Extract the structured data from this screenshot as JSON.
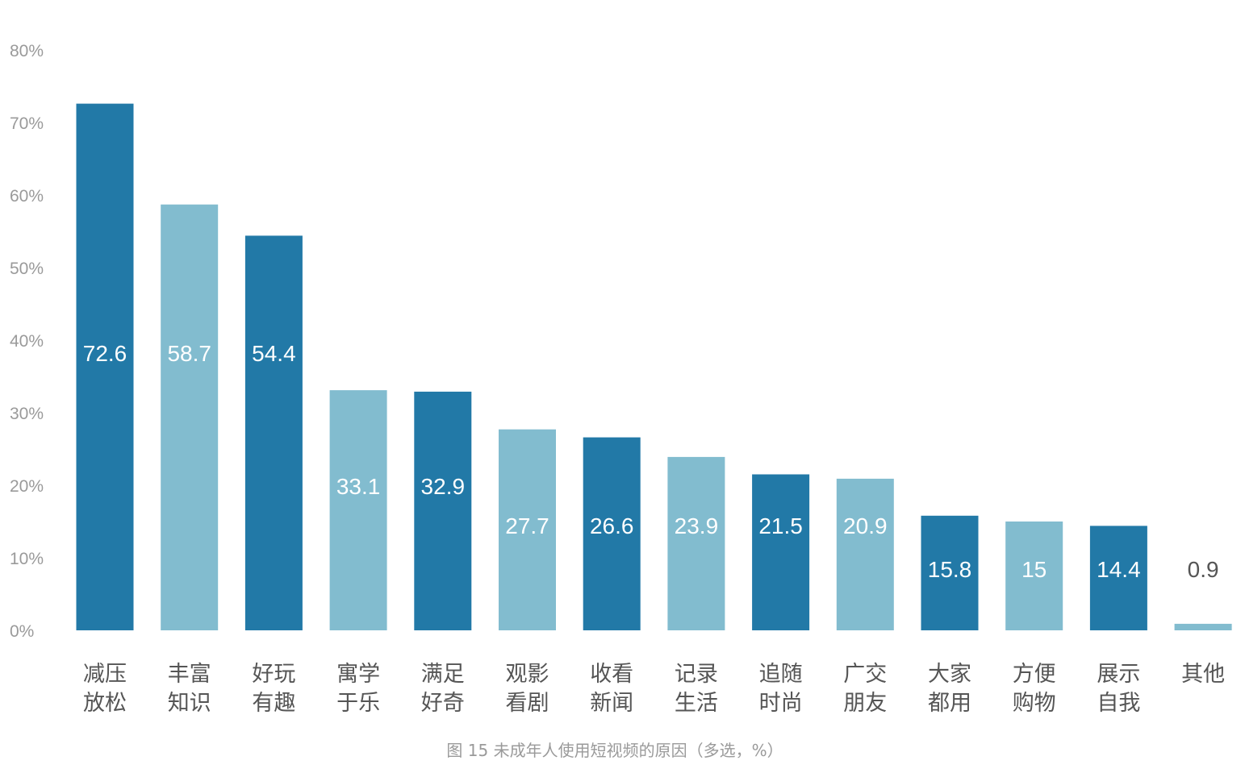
{
  "chart_data": {
    "type": "bar",
    "title": "",
    "caption": "图 15  未成年人使用短视频的原因（多选，%）",
    "xlabel": "",
    "ylabel": "",
    "ylim": [
      0,
      80
    ],
    "yticks": [
      "0%",
      "10%",
      "20%",
      "30%",
      "40%",
      "50%",
      "60%",
      "70%",
      "80%"
    ],
    "grid": false,
    "categories": [
      [
        "减压",
        "放松"
      ],
      [
        "丰富",
        "知识"
      ],
      [
        "好玩",
        "有趣"
      ],
      [
        "寓学",
        "于乐"
      ],
      [
        "满足",
        "好奇"
      ],
      [
        "观影",
        "看剧"
      ],
      [
        "收看",
        "新闻"
      ],
      [
        "记录",
        "生活"
      ],
      [
        "追随",
        "时尚"
      ],
      [
        "广交",
        "朋友"
      ],
      [
        "大家",
        "都用"
      ],
      [
        "方便",
        "购物"
      ],
      [
        "展示",
        "自我"
      ],
      [
        "其他"
      ]
    ],
    "values": [
      72.6,
      58.7,
      54.4,
      33.1,
      32.9,
      27.7,
      26.6,
      23.9,
      21.5,
      20.9,
      15.8,
      15,
      14.4,
      0.9
    ],
    "value_labels": [
      "72.6",
      "58.7",
      "54.4",
      "33.1",
      "32.9",
      "27.7",
      "26.6",
      "23.9",
      "21.5",
      "20.9",
      "15.8",
      "15",
      "14.4",
      "0.9"
    ],
    "colors": {
      "dark": "#2279a7",
      "light": "#82bccf",
      "label_on_bar": "#ffffff",
      "label_outside": "#555555"
    }
  }
}
